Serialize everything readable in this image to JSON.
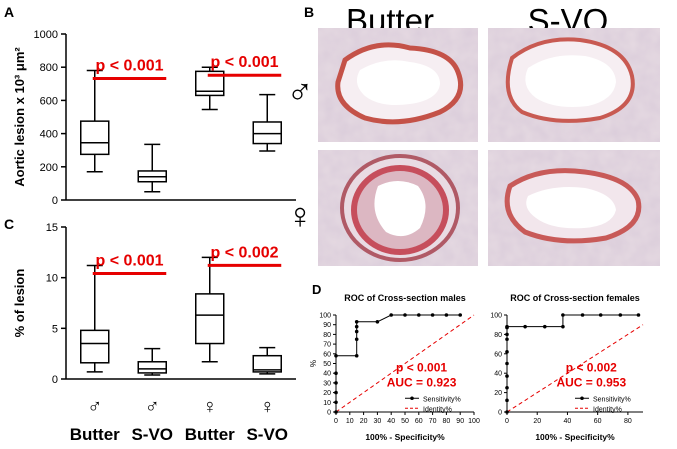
{
  "panels": {
    "A": "A",
    "B": "B",
    "C": "C",
    "D": "D"
  },
  "headers": {
    "col1": "Butter",
    "col2": "S-VO"
  },
  "symbols": {
    "male": "♂",
    "female": "♀"
  },
  "colors": {
    "significance": "#e60000",
    "stain": "#c8504a",
    "tissue": "#d9c9d6"
  },
  "bottom_axis": [
    {
      "sex": "♂",
      "label": "Butter"
    },
    {
      "sex": "♂",
      "label": "S-VO"
    },
    {
      "sex": "♀",
      "label": "Butter"
    },
    {
      "sex": "♀",
      "label": "S-VO"
    }
  ],
  "chart_data": [
    {
      "panel": "A",
      "type": "box",
      "ylabel": "Aortic lesion x 10³ μm²",
      "ylim": [
        0,
        1000
      ],
      "yticks": [
        0,
        200,
        400,
        600,
        800,
        1000
      ],
      "groups": [
        {
          "min": 170,
          "q1": 275,
          "median": 345,
          "q3": 475,
          "max": 780
        },
        {
          "min": 50,
          "q1": 110,
          "median": 140,
          "q3": 175,
          "max": 335
        },
        {
          "min": 545,
          "q1": 630,
          "median": 655,
          "q3": 775,
          "max": 800
        },
        {
          "min": 295,
          "q1": 340,
          "median": 400,
          "q3": 470,
          "max": 635
        }
      ],
      "annotations": [
        {
          "text": "p < 0.001",
          "between": [
            0,
            1
          ]
        },
        {
          "text": "p < 0.001",
          "between": [
            2,
            3
          ]
        }
      ]
    },
    {
      "panel": "C",
      "type": "box",
      "ylabel": "% of lesion",
      "ylim": [
        0,
        15
      ],
      "yticks": [
        0,
        5,
        10,
        15
      ],
      "groups": [
        {
          "min": 0.7,
          "q1": 1.6,
          "median": 3.5,
          "q3": 4.8,
          "max": 11.2
        },
        {
          "min": 0.4,
          "q1": 0.6,
          "median": 1.0,
          "q3": 1.7,
          "max": 3.0
        },
        {
          "min": 1.7,
          "q1": 3.5,
          "median": 6.3,
          "q3": 8.4,
          "max": 12.0
        },
        {
          "min": 0.5,
          "q1": 0.7,
          "median": 0.9,
          "q3": 2.3,
          "max": 3.1
        }
      ],
      "annotations": [
        {
          "text": "p < 0.001",
          "between": [
            0,
            1
          ]
        },
        {
          "text": "p < 0.002",
          "between": [
            2,
            3
          ]
        }
      ]
    },
    {
      "panel": "D",
      "type": "line",
      "title": "ROC of Cross-section males",
      "xlabel": "100% - Specificity%",
      "ylabel": "%",
      "xlim": [
        0,
        100
      ],
      "ylim": [
        0,
        100
      ],
      "xticks": [
        0,
        10,
        20,
        30,
        40,
        50,
        60,
        70,
        80,
        90,
        100
      ],
      "yticks": [
        0,
        10,
        20,
        30,
        40,
        50,
        60,
        70,
        80,
        90,
        100
      ],
      "series": [
        {
          "name": "Sensitivity%",
          "x": [
            0,
            0,
            0,
            0,
            0,
            0,
            15,
            15,
            15,
            15,
            15,
            30,
            40,
            50,
            60,
            70,
            80,
            90
          ],
          "y": [
            0,
            10,
            20,
            30,
            40,
            58,
            58,
            75,
            83,
            88,
            93,
            93,
            100,
            100,
            100,
            100,
            100,
            100
          ]
        },
        {
          "name": "Identity%",
          "x": [
            0,
            100
          ],
          "y": [
            0,
            100
          ]
        }
      ],
      "stats": {
        "p": "p < 0.001",
        "auc": "AUC = 0.923"
      }
    },
    {
      "panel": "D",
      "type": "line",
      "title": "ROC of Cross-section females",
      "xlabel": "100% - Specificity%",
      "ylabel": "",
      "xlim": [
        0,
        90
      ],
      "ylim": [
        0,
        100
      ],
      "xticks": [
        0,
        20,
        40,
        60,
        80
      ],
      "yticks": [
        0,
        20,
        40,
        60,
        80,
        100
      ],
      "series": [
        {
          "name": "Sensitivity%",
          "x": [
            0,
            0,
            0,
            0,
            0,
            0,
            0,
            0,
            0,
            0,
            12,
            25,
            37,
            37,
            50,
            62,
            75,
            87
          ],
          "y": [
            0,
            12,
            25,
            37,
            50,
            62,
            75,
            80,
            87,
            88,
            88,
            88,
            88,
            100,
            100,
            100,
            100,
            100
          ]
        },
        {
          "name": "Identity%",
          "x": [
            0,
            90
          ],
          "y": [
            0,
            90
          ]
        }
      ],
      "stats": {
        "p": "p < 0.002",
        "auc": "AUC = 0.953"
      }
    }
  ]
}
